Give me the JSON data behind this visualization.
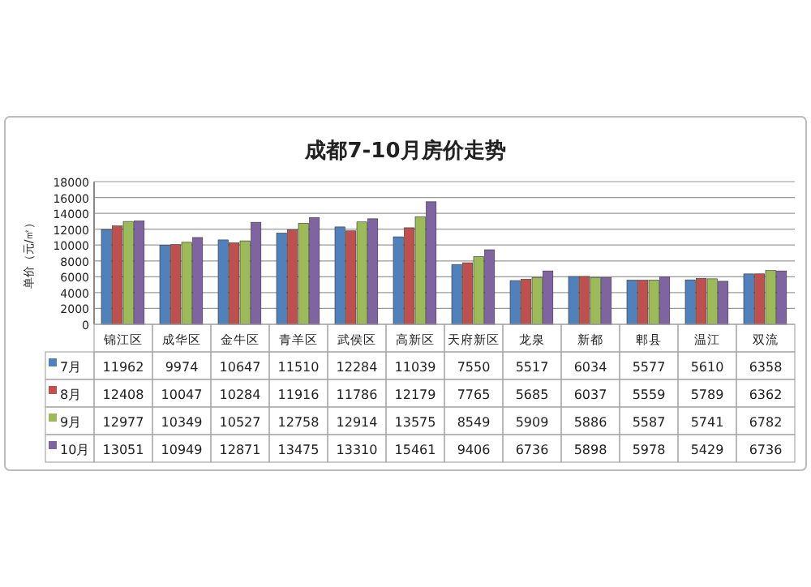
{
  "chart_data": {
    "type": "bar",
    "title": "成都7-10月房价走势",
    "ylabel": "单价（元/㎡）",
    "categories": [
      "锦江区",
      "成华区",
      "金牛区",
      "青羊区",
      "武侯区",
      "高新区",
      "天府新区",
      "龙泉",
      "新都",
      "郫县",
      "温江",
      "双流"
    ],
    "series": [
      {
        "name": "7月",
        "color": "#4f81bd",
        "values": [
          11962,
          9974,
          10647,
          11510,
          12284,
          11039,
          7550,
          5517,
          6034,
          5577,
          5610,
          6358
        ]
      },
      {
        "name": "8月",
        "color": "#c0504d",
        "values": [
          12408,
          10047,
          10284,
          11916,
          11786,
          12179,
          7765,
          5685,
          6037,
          5559,
          5789,
          6362
        ]
      },
      {
        "name": "9月",
        "color": "#9bbb59",
        "values": [
          12977,
          10349,
          10527,
          12758,
          12914,
          13575,
          8549,
          5909,
          5886,
          5587,
          5741,
          6782
        ]
      },
      {
        "name": "10月",
        "color": "#8064a2",
        "values": [
          13051,
          10949,
          12871,
          13475,
          13310,
          15461,
          9406,
          6736,
          5898,
          5978,
          5429,
          6736
        ]
      }
    ],
    "ylim": [
      0,
      18000
    ],
    "yticks": [
      0,
      2000,
      4000,
      6000,
      8000,
      10000,
      12000,
      14000,
      16000,
      18000
    ],
    "grid": "y",
    "data_labels": true,
    "legend": "bottom"
  }
}
